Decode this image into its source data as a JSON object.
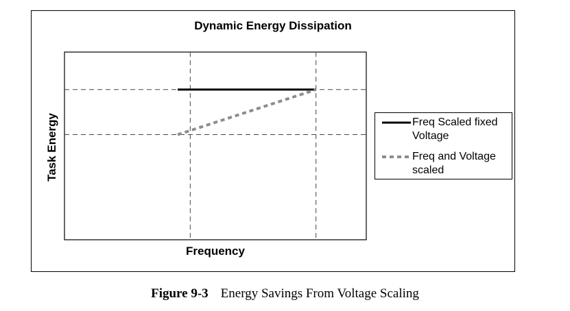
{
  "chart_data": {
    "type": "line",
    "title": "Dynamic Energy Dissipation",
    "xlabel": "Frequency",
    "ylabel": "Task Energy",
    "x": [
      1,
      2
    ],
    "ylim": [
      0,
      2.5
    ],
    "xlim": [
      0,
      2.4
    ],
    "grid": true,
    "legend_position": "right",
    "series": [
      {
        "name": "Freq Scaled fixed Voltage",
        "x": [
          0.9,
          2
        ],
        "y": [
          2,
          2
        ],
        "style": "solid",
        "color": "#000000"
      },
      {
        "name": "Freq and Voltage scaled",
        "x": [
          0.9,
          2
        ],
        "y": [
          1.4,
          2
        ],
        "style": "dashed",
        "color": "#8c8c8c"
      }
    ]
  },
  "legend": {
    "item1": {
      "line1": "Freq Scaled fixed",
      "line2": "Voltage"
    },
    "item2": {
      "line1": "Freq and Voltage",
      "line2": "scaled"
    }
  },
  "caption": {
    "number": "Figure 9-3",
    "text": "Energy Savings From Voltage Scaling"
  }
}
